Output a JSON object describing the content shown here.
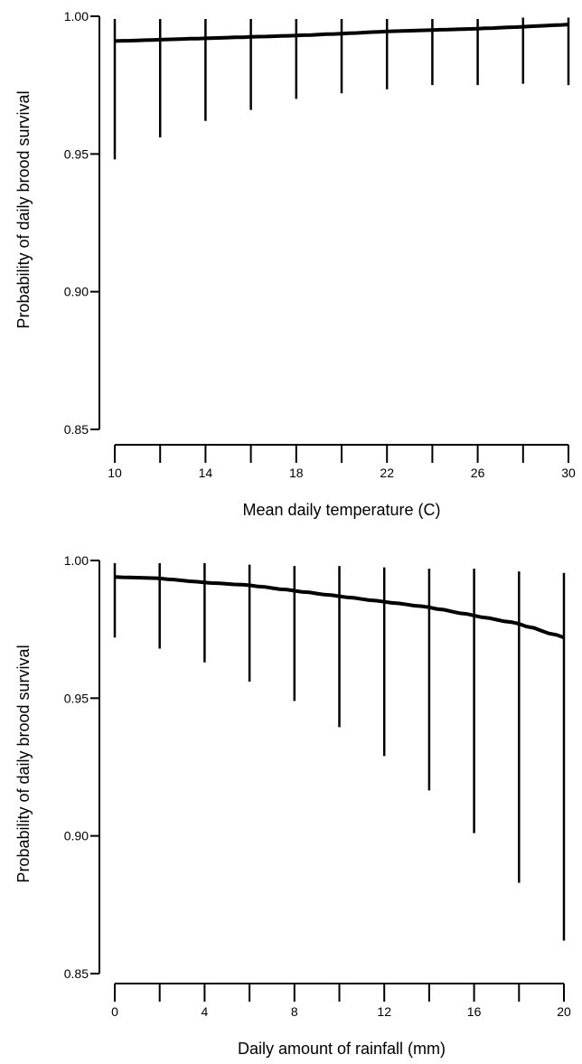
{
  "chart_data": [
    {
      "type": "line",
      "title": "",
      "xlabel": "Mean daily temperature (C)",
      "ylabel": "Probability of daily brood survival",
      "xlim": [
        10,
        30
      ],
      "ylim": [
        0.85,
        1.0
      ],
      "x_ticks": [
        "10",
        "14",
        "18",
        "22",
        "26",
        "30"
      ],
      "y_ticks": [
        "0.85",
        "0.90",
        "0.95",
        "1.00"
      ],
      "grid": false,
      "series": [
        {
          "x": [
            10,
            12,
            14,
            16,
            18,
            20,
            22,
            24,
            26,
            28,
            30
          ],
          "values": [
            0.991,
            0.9915,
            0.992,
            0.9925,
            0.993,
            0.9937,
            0.9945,
            0.995,
            0.9955,
            0.9962,
            0.997
          ],
          "lower": [
            0.948,
            0.956,
            0.962,
            0.966,
            0.97,
            0.972,
            0.9735,
            0.975,
            0.975,
            0.9755,
            0.975
          ],
          "upper": [
            0.999,
            0.999,
            0.999,
            0.999,
            0.999,
            0.999,
            0.999,
            0.999,
            0.999,
            0.9995,
            0.9995
          ]
        }
      ]
    },
    {
      "type": "line",
      "title": "",
      "xlabel": "Daily amount of rainfall (mm)",
      "ylabel": "Probability of daily brood survival",
      "xlim": [
        0,
        20
      ],
      "ylim": [
        0.85,
        1.0
      ],
      "x_ticks": [
        "0",
        "4",
        "8",
        "12",
        "16",
        "20"
      ],
      "y_ticks": [
        "0.85",
        "0.90",
        "0.95",
        "1.00"
      ],
      "grid": false,
      "series": [
        {
          "x": [
            0,
            2,
            4,
            6,
            8,
            10,
            12,
            14,
            16,
            18,
            20
          ],
          "values": [
            0.994,
            0.9935,
            0.992,
            0.991,
            0.989,
            0.987,
            0.985,
            0.983,
            0.98,
            0.977,
            0.972
          ],
          "lower": [
            0.972,
            0.968,
            0.963,
            0.956,
            0.949,
            0.9395,
            0.929,
            0.9165,
            0.901,
            0.883,
            0.862
          ],
          "upper": [
            0.999,
            0.999,
            0.999,
            0.9985,
            0.998,
            0.998,
            0.9975,
            0.997,
            0.997,
            0.996,
            0.9955
          ]
        }
      ]
    }
  ]
}
